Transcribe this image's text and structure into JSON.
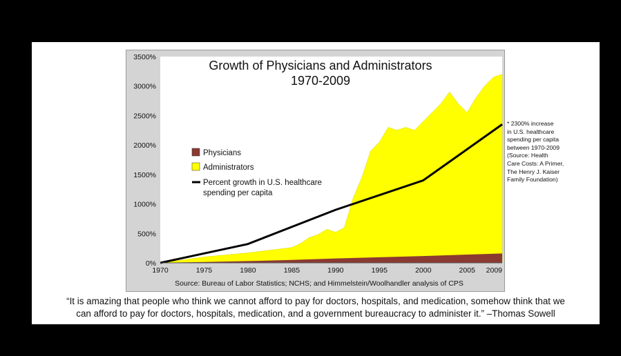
{
  "chart_data": {
    "type": "area",
    "title": "Growth of Physicians and Administrators",
    "subtitle": "1970-2009",
    "x_ticks": [
      "1970",
      "1975",
      "1980",
      "1985",
      "1990",
      "1995",
      "2000",
      "2005",
      "2009"
    ],
    "y_ticks": [
      "0%",
      "500%",
      "1000%",
      "1500%",
      "2000%",
      "2500%",
      "3000%",
      "3500%"
    ],
    "xlim": [
      1970,
      2009
    ],
    "ylim": [
      0,
      3500
    ],
    "series": [
      {
        "name": "Physicians",
        "color": "#8b3a32",
        "x": [
          1970,
          1975,
          1980,
          1985,
          1990,
          1995,
          2000,
          2005,
          2009
        ],
        "y": [
          0,
          15,
          30,
          50,
          75,
          95,
          115,
          140,
          160
        ]
      },
      {
        "name": "Administrators",
        "color": "#ffff00",
        "x": [
          1970,
          1975,
          1980,
          1985,
          1986,
          1987,
          1988,
          1989,
          1990,
          1991,
          1992,
          1993,
          1994,
          1995,
          1996,
          1997,
          1998,
          1999,
          2000,
          2001,
          2002,
          2003,
          2004,
          2005,
          2006,
          2007,
          2008,
          2009
        ],
        "y": [
          0,
          100,
          170,
          260,
          330,
          430,
          480,
          570,
          520,
          600,
          1100,
          1450,
          1900,
          2050,
          2300,
          2250,
          2300,
          2250,
          2400,
          2550,
          2700,
          2900,
          2700,
          2550,
          2800,
          3000,
          3150,
          3200
        ]
      },
      {
        "name": "Percent growth in U.S. healthcare spending per capita",
        "color": "#000000",
        "x": [
          1970,
          1980,
          1990,
          2000,
          2009
        ],
        "y": [
          0,
          320,
          900,
          1400,
          2350
        ]
      }
    ],
    "legend": [
      "Physicians",
      "Administrators",
      "Percent growth in U.S. healthcare",
      "spending per capita"
    ],
    "source": "Source: Bureau of Labor Statistics; NCHS; and Himmelstein/Woolhandler analysis of CPS",
    "annotation": [
      "* 2300% increase",
      "in U.S. healthcare",
      "spending per capita",
      "between 1970-2009",
      "(Source: Health",
      "Care Costs: A Primer,",
      "The Henry J. Kaiser",
      "Family Foundation)"
    ]
  },
  "quote": [
    "“It is amazing that people who think we cannot afford to pay for doctors, hospitals, and medication, somehow think that we",
    "can afford to pay for doctors, hospitals, medication, and a government bureaucracy to administer it.” –Thomas Sowell"
  ]
}
